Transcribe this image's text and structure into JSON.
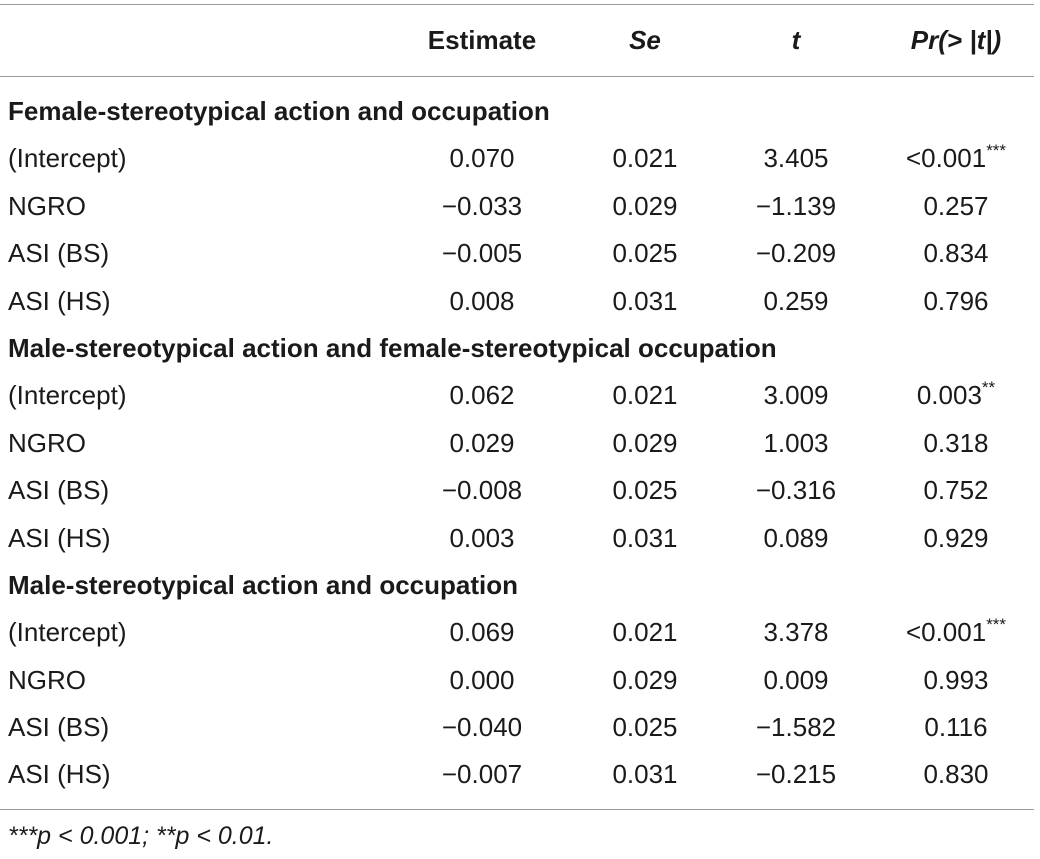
{
  "header": {
    "estimate": "Estimate",
    "se": "Se",
    "t": "t",
    "p": "Pr(> |t|)"
  },
  "sections": [
    {
      "title": "Female-stereotypical action and occupation",
      "rows": [
        {
          "label": "(Intercept)",
          "estimate": "0.070",
          "se": "0.021",
          "t": "3.405",
          "p": "<0.001",
          "sig": "***"
        },
        {
          "label": "NGRO",
          "estimate": "−0.033",
          "se": "0.029",
          "t": "−1.139",
          "p": "0.257",
          "sig": ""
        },
        {
          "label": "ASI (BS)",
          "estimate": "−0.005",
          "se": "0.025",
          "t": "−0.209",
          "p": "0.834",
          "sig": ""
        },
        {
          "label": "ASI (HS)",
          "estimate": "0.008",
          "se": "0.031",
          "t": "0.259",
          "p": "0.796",
          "sig": ""
        }
      ]
    },
    {
      "title": "Male-stereotypical action and female-stereotypical occupation",
      "rows": [
        {
          "label": "(Intercept)",
          "estimate": "0.062",
          "se": "0.021",
          "t": "3.009",
          "p": "0.003",
          "sig": "**"
        },
        {
          "label": "NGRO",
          "estimate": "0.029",
          "se": "0.029",
          "t": "1.003",
          "p": "0.318",
          "sig": ""
        },
        {
          "label": "ASI (BS)",
          "estimate": "−0.008",
          "se": "0.025",
          "t": "−0.316",
          "p": "0.752",
          "sig": ""
        },
        {
          "label": "ASI (HS)",
          "estimate": "0.003",
          "se": "0.031",
          "t": "0.089",
          "p": "0.929",
          "sig": ""
        }
      ]
    },
    {
      "title": "Male-stereotypical action and occupation",
      "rows": [
        {
          "label": "(Intercept)",
          "estimate": "0.069",
          "se": "0.021",
          "t": "3.378",
          "p": "<0.001",
          "sig": "***"
        },
        {
          "label": "NGRO",
          "estimate": "0.000",
          "se": "0.029",
          "t": "0.009",
          "p": "0.993",
          "sig": ""
        },
        {
          "label": "ASI (BS)",
          "estimate": "−0.040",
          "se": "0.025",
          "t": "−1.582",
          "p": "0.116",
          "sig": ""
        },
        {
          "label": "ASI (HS)",
          "estimate": "−0.007",
          "se": "0.031",
          "t": "−0.215",
          "p": "0.830",
          "sig": ""
        }
      ]
    }
  ],
  "footnote": "***p < 0.001; **p < 0.01."
}
